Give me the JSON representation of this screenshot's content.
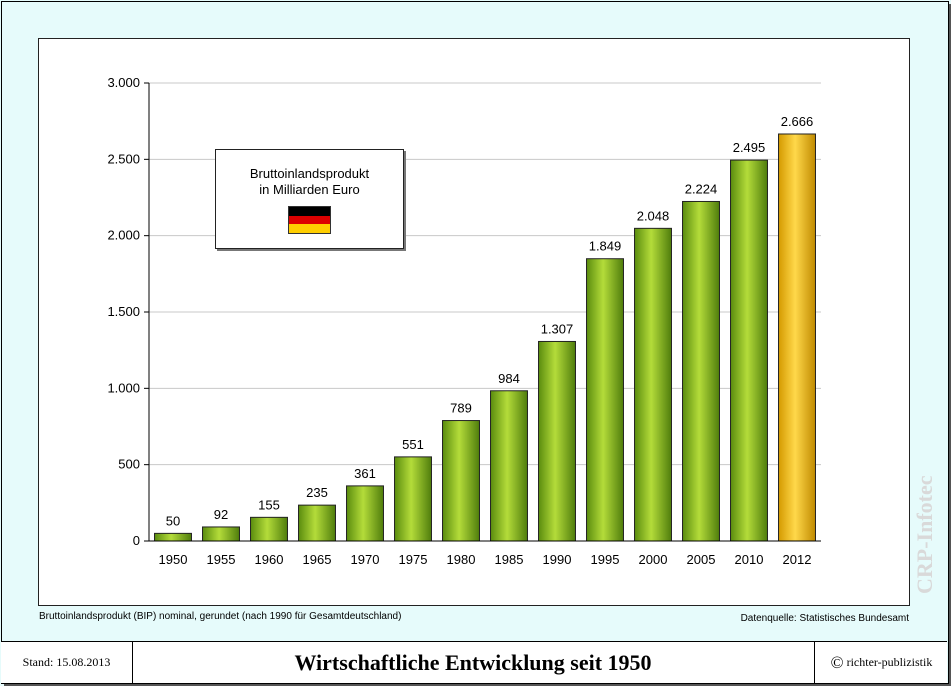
{
  "chart_data": {
    "type": "bar",
    "title": "Bruttoinlandsprodukt",
    "subtitle": "in Milliarden Euro",
    "categories": [
      "1950",
      "1955",
      "1960",
      "1965",
      "1970",
      "1975",
      "1980",
      "1985",
      "1990",
      "1995",
      "2000",
      "2005",
      "2010",
      "2012"
    ],
    "values": [
      50,
      92,
      155,
      235,
      361,
      551,
      789,
      984,
      1307,
      1849,
      2048,
      2224,
      2495,
      2666
    ],
    "value_labels": [
      "50",
      "92",
      "155",
      "235",
      "361",
      "551",
      "789",
      "984",
      "1.307",
      "1.849",
      "2.048",
      "2.224",
      "2.495",
      "2.666"
    ],
    "ylim": [
      0,
      3000
    ],
    "yticks": [
      0,
      500,
      1000,
      1500,
      2000,
      2500,
      3000
    ],
    "ytick_labels": [
      "0",
      "500",
      "1.000",
      "1.500",
      "2.000",
      "2.500",
      "3.000"
    ],
    "grid": true,
    "highlight_last": true,
    "colors": {
      "bar": "#8dc21f",
      "bar_dark": "#4f7d0c",
      "highlight": "#f0c020",
      "highlight_dark": "#c08a00",
      "grid": "#c8c8c8"
    }
  },
  "flag_colors": [
    "#000000",
    "#dd0000",
    "#ffce00"
  ],
  "notes": {
    "left": "Bruttoinlandsprodukt (BIP) nominal, gerundet (nach 1990 für Gesamtdeutschland)",
    "right": "Datenquelle: Statistisches Bundesamt"
  },
  "watermark": "CRP-Infotec",
  "footer": {
    "date": "Stand: 15.08.2013",
    "title": "Wirtschaftliche Entwicklung seit 1950",
    "copyright_symbol": "©",
    "copyright": "richter-publizistik"
  }
}
